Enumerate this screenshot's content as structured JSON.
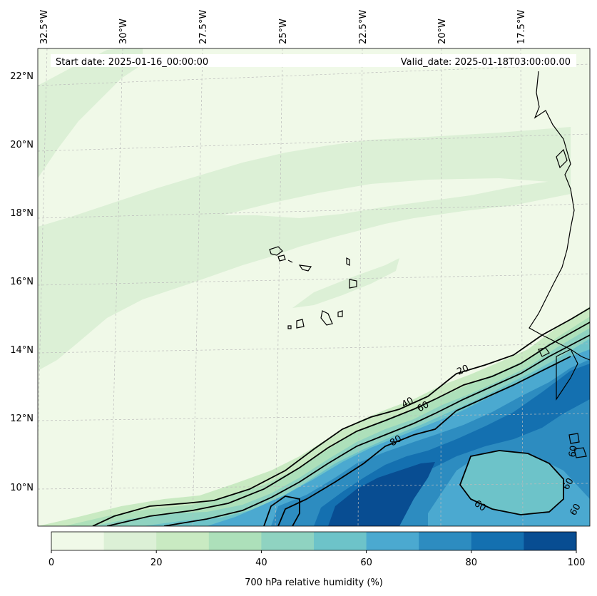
{
  "header": {
    "start_date": "Start date: 2025-01-16_00:00:00",
    "valid_date": "Valid_date: 2025-01-18T03:00:00.00"
  },
  "axes": {
    "lon_labels": [
      "32.5°W",
      "30°W",
      "27.5°W",
      "25°W",
      "22.5°W",
      "20°W",
      "17.5°W"
    ],
    "lat_labels": [
      "22°N",
      "20°N",
      "18°N",
      "16°N",
      "14°N",
      "12°N",
      "10°N"
    ]
  },
  "contour_labels": [
    "20",
    "40",
    "60",
    "80",
    "60",
    "60",
    "60",
    "60"
  ],
  "colorbar": {
    "label": "700 hPa relative humidity (%)",
    "ticks": [
      "0",
      "20",
      "40",
      "60",
      "80",
      "100"
    ],
    "colors": [
      "#f0f9e8",
      "#dcf0d6",
      "#c9eac2",
      "#ade0ba",
      "#8fd3c1",
      "#6dc3c9",
      "#4ba9d0",
      "#2d8cc0",
      "#1470b0",
      "#084d92"
    ]
  },
  "chart_data": {
    "type": "heatmap",
    "variable": "700 hPa relative humidity (%)",
    "levels": [
      0,
      10,
      20,
      30,
      40,
      50,
      60,
      70,
      80,
      90,
      100
    ],
    "contour_levels": [
      20,
      40,
      60,
      80
    ],
    "lon_range": [
      -33,
      -16
    ],
    "lat_range": [
      9,
      22.5
    ]
  }
}
